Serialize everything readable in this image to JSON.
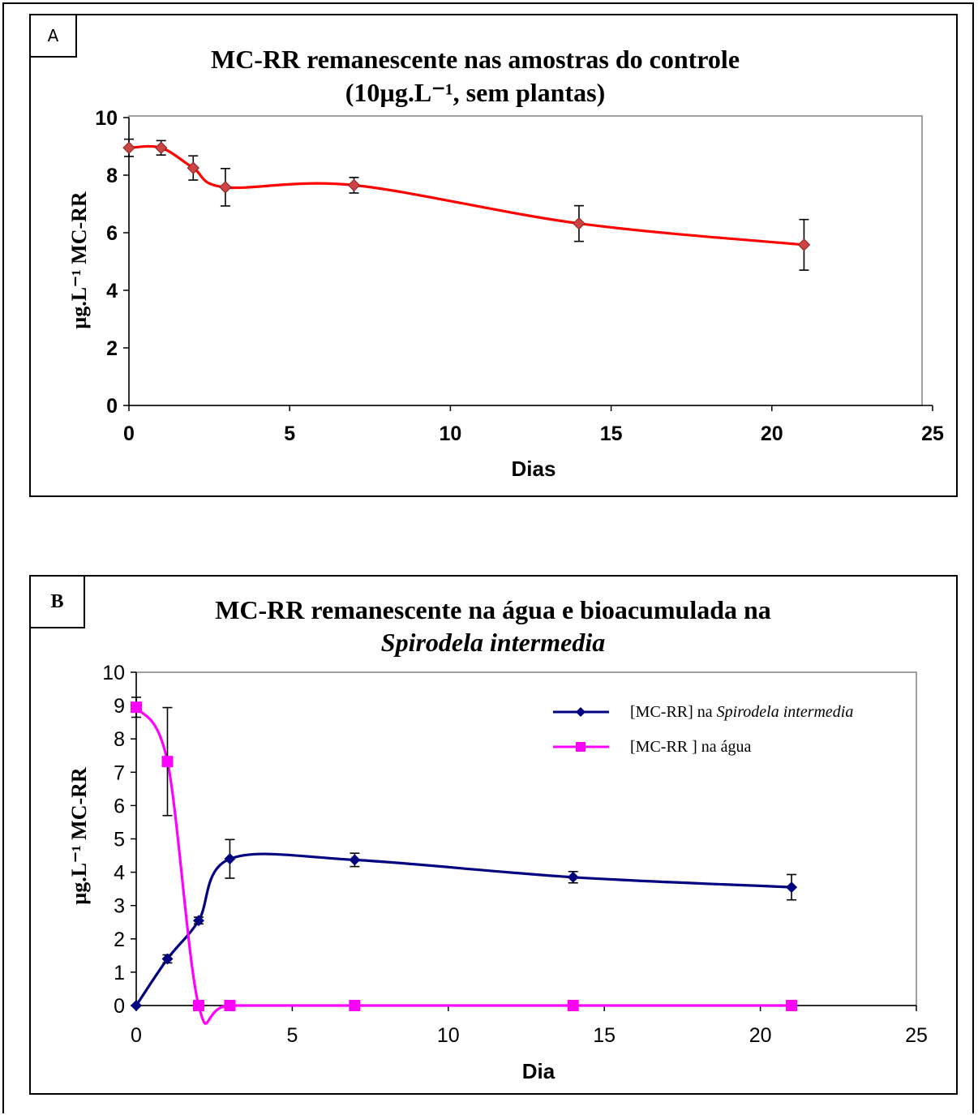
{
  "panels": [
    {
      "badge": "A",
      "title_line1": "MC-RR remanescente nas amostras do controle",
      "title_line2": "(10µg.L⁻¹, sem plantas)"
    },
    {
      "badge": "B",
      "title_line1": "MC-RR remanescente na água e bioacumulada na",
      "title_line2": "Spirodela intermedia",
      "legend": [
        {
          "prefix": "[MC-RR] na ",
          "italic": "Spirodela intermedia"
        },
        {
          "prefix": "[MC-RR ] na água",
          "italic": ""
        }
      ]
    }
  ],
  "chart_data": [
    {
      "type": "line",
      "title": "MC-RR remanescente nas amostras do controle (10µg.L⁻¹, sem plantas)",
      "xlabel": "Dias",
      "ylabel": "µg.L⁻¹ MC-RR",
      "xlim": [
        0,
        25
      ],
      "ylim": [
        0,
        10
      ],
      "xticks": [
        0,
        5,
        10,
        15,
        20,
        25
      ],
      "yticks": [
        0,
        2,
        4,
        6,
        8,
        10
      ],
      "grid": false,
      "series": [
        {
          "name": "",
          "color": "#ff0000",
          "marker_color": "#cc4444",
          "marker": "diamond",
          "x": [
            0,
            1,
            2,
            3,
            7,
            14,
            21
          ],
          "y": [
            8.95,
            8.95,
            8.25,
            7.58,
            7.65,
            6.32,
            5.58
          ],
          "err": [
            0.3,
            0.25,
            0.42,
            0.65,
            0.27,
            0.62,
            0.88
          ]
        }
      ]
    },
    {
      "type": "line",
      "title": "MC-RR remanescente na água e bioacumulada na Spirodela intermedia",
      "xlabel": "Dia",
      "ylabel": "µg.L⁻¹ MC-RR",
      "xlim": [
        0,
        25
      ],
      "ylim": [
        0,
        10
      ],
      "xticks": [
        0,
        5,
        10,
        15,
        20,
        25
      ],
      "yticks": [
        0,
        1,
        2,
        3,
        4,
        5,
        6,
        7,
        8,
        9,
        10
      ],
      "grid": false,
      "legend": "top-right",
      "series": [
        {
          "name": "[MC-RR] na Spirodela intermedia",
          "color": "#000080",
          "marker": "diamond",
          "x": [
            0,
            1,
            2,
            3,
            7,
            14,
            21
          ],
          "y": [
            0,
            1.4,
            2.55,
            4.4,
            4.37,
            3.85,
            3.55
          ],
          "err": [
            0,
            0.12,
            0.1,
            0.58,
            0.2,
            0.17,
            0.38
          ]
        },
        {
          "name": "[MC-RR ] na água",
          "color": "#ff00ff",
          "marker": "square",
          "x": [
            0,
            1,
            2,
            3,
            7,
            14,
            21
          ],
          "y": [
            8.95,
            7.32,
            0,
            0,
            0,
            0,
            0
          ],
          "err": [
            0.3,
            1.62,
            0,
            0,
            0,
            0,
            0
          ]
        }
      ]
    }
  ]
}
